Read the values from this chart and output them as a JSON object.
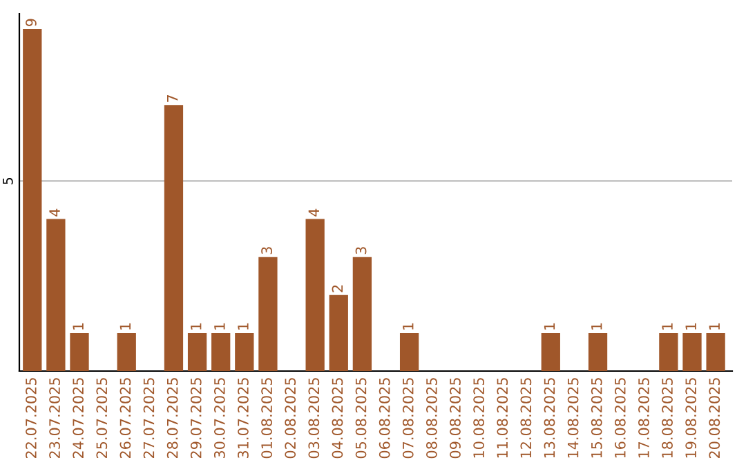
{
  "chart_data": {
    "type": "bar",
    "categories": [
      "22.07.2025",
      "23.07.2025",
      "24.07.2025",
      "25.07.2025",
      "26.07.2025",
      "27.07.2025",
      "28.07.2025",
      "29.07.2025",
      "30.07.2025",
      "31.07.2025",
      "01.08.2025",
      "02.08.2025",
      "03.08.2025",
      "04.08.2025",
      "05.08.2025",
      "06.08.2025",
      "07.08.2025",
      "08.08.2025",
      "09.08.2025",
      "10.08.2025",
      "11.08.2025",
      "12.08.2025",
      "13.08.2025",
      "14.08.2025",
      "15.08.2025",
      "16.08.2025",
      "17.08.2025",
      "18.08.2025",
      "19.08.2025",
      "20.08.2025"
    ],
    "values": [
      9,
      4,
      1,
      0,
      1,
      0,
      7,
      1,
      1,
      1,
      3,
      0,
      4,
      2,
      3,
      0,
      1,
      0,
      0,
      0,
      0,
      0,
      1,
      0,
      1,
      0,
      0,
      1,
      1,
      1
    ],
    "value_labels": [
      "9",
      "4",
      "1",
      null,
      "1",
      null,
      "7",
      "1",
      "1",
      "1",
      "3",
      null,
      "4",
      "2",
      "3",
      null,
      "1",
      null,
      null,
      null,
      null,
      null,
      "1",
      null,
      "1",
      null,
      null,
      "1",
      "1",
      "1"
    ],
    "color": "#a0572a",
    "ylim": [
      0,
      9.4
    ],
    "yticks": [
      5
    ],
    "grid": "y"
  }
}
